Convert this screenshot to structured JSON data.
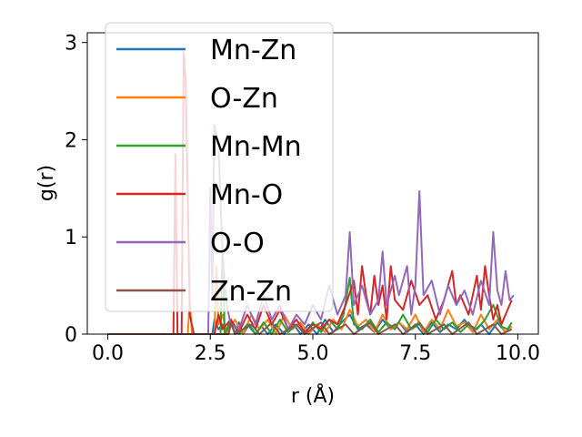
{
  "chart_data": {
    "type": "line",
    "title": "",
    "xlabel": "r (Å)",
    "ylabel": "g(r)",
    "xlim": [
      -0.5,
      10.5
    ],
    "ylim": [
      0,
      3.1
    ],
    "xticks": [
      0.0,
      2.5,
      5.0,
      7.5,
      10.0
    ],
    "xtick_labels": [
      "0.0",
      "2.5",
      "5.0",
      "7.5",
      "10.0"
    ],
    "yticks": [
      0,
      1,
      2,
      3
    ],
    "ytick_labels": [
      "0",
      "1",
      "2",
      "3"
    ],
    "grid": false,
    "legend_position": "top-left",
    "series": [
      {
        "name": "Mn-Zn",
        "color": "#1f77b4",
        "points": [
          [
            0,
            0
          ],
          [
            2.55,
            0
          ],
          [
            2.6,
            0.15
          ],
          [
            2.7,
            0.05
          ],
          [
            2.8,
            0.1
          ],
          [
            2.9,
            0
          ],
          [
            3.0,
            0.15
          ],
          [
            3.1,
            0
          ],
          [
            3.2,
            0.12
          ],
          [
            3.3,
            0
          ],
          [
            3.45,
            0.1
          ],
          [
            3.6,
            0
          ],
          [
            3.75,
            0.08
          ],
          [
            3.9,
            0
          ],
          [
            4.1,
            0.1
          ],
          [
            4.3,
            0
          ],
          [
            4.5,
            0.12
          ],
          [
            4.7,
            0
          ],
          [
            4.9,
            0.1
          ],
          [
            5.1,
            0
          ],
          [
            5.3,
            0.15
          ],
          [
            5.5,
            0.02
          ],
          [
            5.7,
            0.12
          ],
          [
            5.9,
            0.2
          ],
          [
            6.1,
            0.05
          ],
          [
            6.3,
            0.1
          ],
          [
            6.5,
            0.02
          ],
          [
            6.7,
            0.15
          ],
          [
            6.9,
            0.05
          ],
          [
            7.1,
            0.12
          ],
          [
            7.3,
            0.02
          ],
          [
            7.5,
            0.1
          ],
          [
            7.7,
            0
          ],
          [
            7.9,
            0.12
          ],
          [
            8.1,
            0.02
          ],
          [
            8.3,
            0.1
          ],
          [
            8.5,
            0.05
          ],
          [
            8.7,
            0.15
          ],
          [
            8.9,
            0.02
          ],
          [
            9.1,
            0.1
          ],
          [
            9.3,
            0
          ],
          [
            9.5,
            0.12
          ],
          [
            9.7,
            0.02
          ],
          [
            9.85,
            0.05
          ]
        ]
      },
      {
        "name": "O-Zn",
        "color": "#ff7f0e",
        "points": [
          [
            0,
            0
          ],
          [
            1.95,
            0
          ],
          [
            2.0,
            0.35
          ],
          [
            2.05,
            0
          ],
          [
            2.6,
            0
          ],
          [
            2.65,
            0.7
          ],
          [
            2.7,
            0.1
          ],
          [
            2.8,
            0.2
          ],
          [
            2.9,
            0
          ],
          [
            3.1,
            0.15
          ],
          [
            3.3,
            0
          ],
          [
            3.5,
            0.2
          ],
          [
            3.7,
            0.05
          ],
          [
            3.9,
            0.15
          ],
          [
            4.1,
            0
          ],
          [
            4.3,
            0.2
          ],
          [
            4.5,
            0.05
          ],
          [
            4.7,
            0.12
          ],
          [
            4.9,
            0
          ],
          [
            5.1,
            0.1
          ],
          [
            5.3,
            0.02
          ],
          [
            5.5,
            0.15
          ],
          [
            5.7,
            0.05
          ],
          [
            5.9,
            0.25
          ],
          [
            6.1,
            0.08
          ],
          [
            6.3,
            0.15
          ],
          [
            6.5,
            0.02
          ],
          [
            6.7,
            0.2
          ],
          [
            6.9,
            0.05
          ],
          [
            7.1,
            0.12
          ],
          [
            7.3,
            0.05
          ],
          [
            7.5,
            0.2
          ],
          [
            7.7,
            0.02
          ],
          [
            7.9,
            0.15
          ],
          [
            8.1,
            0.05
          ],
          [
            8.3,
            0.25
          ],
          [
            8.5,
            0.08
          ],
          [
            8.7,
            0.12
          ],
          [
            8.9,
            0.02
          ],
          [
            9.1,
            0.2
          ],
          [
            9.3,
            0.05
          ],
          [
            9.5,
            0.15
          ],
          [
            9.7,
            0.02
          ],
          [
            9.85,
            0.08
          ]
        ]
      },
      {
        "name": "Mn-Mn",
        "color": "#2ca02c",
        "points": [
          [
            0,
            0
          ],
          [
            2.75,
            0
          ],
          [
            2.8,
            0.9
          ],
          [
            2.85,
            0
          ],
          [
            3.0,
            0.15
          ],
          [
            3.2,
            0
          ],
          [
            3.4,
            0.1
          ],
          [
            3.6,
            0
          ],
          [
            3.8,
            0.12
          ],
          [
            4.0,
            0
          ],
          [
            4.2,
            0.15
          ],
          [
            4.4,
            0.02
          ],
          [
            4.6,
            0.1
          ],
          [
            4.8,
            0
          ],
          [
            5.0,
            0.12
          ],
          [
            5.2,
            0.02
          ],
          [
            5.4,
            0.15
          ],
          [
            5.6,
            0.05
          ],
          [
            5.75,
            0.2
          ],
          [
            5.9,
            0.58
          ],
          [
            6.0,
            0.1
          ],
          [
            6.2,
            0.05
          ],
          [
            6.4,
            0.15
          ],
          [
            6.6,
            0.02
          ],
          [
            6.8,
            0.12
          ],
          [
            7.0,
            0.05
          ],
          [
            7.2,
            0.2
          ],
          [
            7.4,
            0.05
          ],
          [
            7.6,
            0.1
          ],
          [
            7.8,
            0.02
          ],
          [
            8.0,
            0.15
          ],
          [
            8.2,
            0.05
          ],
          [
            8.4,
            0.12
          ],
          [
            8.6,
            0.02
          ],
          [
            8.8,
            0.1
          ],
          [
            9.0,
            0.05
          ],
          [
            9.2,
            0.15
          ],
          [
            9.4,
            0.3
          ],
          [
            9.6,
            0.08
          ],
          [
            9.75,
            0.05
          ],
          [
            9.85,
            0.12
          ]
        ]
      },
      {
        "name": "Mn-O",
        "color": "#d62728",
        "points": [
          [
            0,
            0
          ],
          [
            1.6,
            0
          ],
          [
            1.65,
            1.85
          ],
          [
            1.7,
            0
          ],
          [
            1.8,
            0
          ],
          [
            1.85,
            2.9
          ],
          [
            1.9,
            2.6
          ],
          [
            1.95,
            1.4
          ],
          [
            2.0,
            0.2
          ],
          [
            2.1,
            0
          ],
          [
            2.6,
            0
          ],
          [
            2.7,
            0.2
          ],
          [
            2.8,
            0.05
          ],
          [
            3.0,
            0.15
          ],
          [
            3.2,
            0.02
          ],
          [
            3.4,
            0.2
          ],
          [
            3.6,
            0.05
          ],
          [
            3.8,
            0.3
          ],
          [
            4.0,
            0.1
          ],
          [
            4.2,
            0.25
          ],
          [
            4.4,
            0.05
          ],
          [
            4.6,
            0.15
          ],
          [
            4.8,
            0.02
          ],
          [
            5.0,
            0.1
          ],
          [
            5.2,
            0.05
          ],
          [
            5.4,
            0.15
          ],
          [
            5.6,
            0.1
          ],
          [
            5.8,
            0.3
          ],
          [
            6.0,
            0.55
          ],
          [
            6.1,
            0.2
          ],
          [
            6.2,
            0.7
          ],
          [
            6.3,
            0.4
          ],
          [
            6.4,
            0.2
          ],
          [
            6.5,
            0.6
          ],
          [
            6.6,
            0.3
          ],
          [
            6.7,
            0.5
          ],
          [
            6.8,
            0.15
          ],
          [
            6.9,
            0.7
          ],
          [
            7.0,
            0.35
          ],
          [
            7.2,
            0.25
          ],
          [
            7.4,
            0.55
          ],
          [
            7.6,
            0.3
          ],
          [
            7.8,
            0.4
          ],
          [
            8.0,
            0.15
          ],
          [
            8.2,
            0.35
          ],
          [
            8.4,
            0.65
          ],
          [
            8.5,
            0.3
          ],
          [
            8.6,
            0.4
          ],
          [
            8.8,
            0.2
          ],
          [
            9.0,
            0.6
          ],
          [
            9.1,
            0.25
          ],
          [
            9.2,
            0.7
          ],
          [
            9.3,
            0.4
          ],
          [
            9.4,
            0.15
          ],
          [
            9.5,
            0.3
          ],
          [
            9.6,
            0.1
          ],
          [
            9.7,
            0.2
          ],
          [
            9.85,
            0.35
          ]
        ]
      },
      {
        "name": "O-O",
        "color": "#9467bd",
        "points": [
          [
            0,
            0
          ],
          [
            2.45,
            0
          ],
          [
            2.5,
            1.5
          ],
          [
            2.55,
            0.4
          ],
          [
            2.6,
            2.15
          ],
          [
            2.7,
            1.95
          ],
          [
            2.8,
            0.8
          ],
          [
            2.9,
            0.3
          ],
          [
            3.0,
            0.1
          ],
          [
            3.2,
            0.05
          ],
          [
            3.4,
            0.3
          ],
          [
            3.6,
            0.1
          ],
          [
            3.8,
            0.4
          ],
          [
            4.0,
            0.15
          ],
          [
            4.2,
            0.3
          ],
          [
            4.4,
            0.05
          ],
          [
            4.6,
            0.2
          ],
          [
            4.8,
            0.1
          ],
          [
            5.0,
            0.3
          ],
          [
            5.2,
            0.15
          ],
          [
            5.4,
            0.5
          ],
          [
            5.6,
            0.2
          ],
          [
            5.8,
            0.4
          ],
          [
            5.9,
            1.05
          ],
          [
            6.0,
            0.3
          ],
          [
            6.2,
            0.5
          ],
          [
            6.4,
            0.2
          ],
          [
            6.6,
            0.35
          ],
          [
            6.7,
            0.85
          ],
          [
            6.8,
            0.3
          ],
          [
            7.0,
            0.6
          ],
          [
            7.1,
            0.4
          ],
          [
            7.3,
            0.7
          ],
          [
            7.4,
            0.2
          ],
          [
            7.5,
            0.5
          ],
          [
            7.6,
            1.47
          ],
          [
            7.7,
            0.4
          ],
          [
            7.9,
            0.55
          ],
          [
            8.1,
            0.2
          ],
          [
            8.3,
            0.5
          ],
          [
            8.5,
            0.3
          ],
          [
            8.7,
            0.45
          ],
          [
            8.9,
            0.2
          ],
          [
            9.1,
            0.55
          ],
          [
            9.3,
            0.3
          ],
          [
            9.4,
            1.05
          ],
          [
            9.5,
            0.45
          ],
          [
            9.6,
            0.3
          ],
          [
            9.7,
            0.65
          ],
          [
            9.8,
            0.35
          ],
          [
            9.9,
            0.4
          ]
        ]
      },
      {
        "name": "Zn-Zn",
        "color": "#8c564b",
        "points": [
          [
            0,
            0
          ],
          [
            2.95,
            0
          ],
          [
            3.0,
            0.12
          ],
          [
            3.1,
            0
          ],
          [
            3.5,
            0.1
          ],
          [
            3.7,
            0
          ],
          [
            4.0,
            0.12
          ],
          [
            4.2,
            0
          ],
          [
            4.6,
            0.1
          ],
          [
            4.8,
            0
          ],
          [
            5.2,
            0.12
          ],
          [
            5.4,
            0
          ],
          [
            5.8,
            0.1
          ],
          [
            6.0,
            0
          ],
          [
            6.4,
            0.12
          ],
          [
            6.6,
            0
          ],
          [
            7.0,
            0.1
          ],
          [
            7.2,
            0
          ],
          [
            7.6,
            0.12
          ],
          [
            7.8,
            0
          ],
          [
            8.2,
            0.1
          ],
          [
            8.4,
            0
          ],
          [
            8.8,
            0.12
          ],
          [
            9.0,
            0
          ],
          [
            9.4,
            0.1
          ],
          [
            9.6,
            0
          ],
          [
            9.85,
            0.05
          ]
        ]
      }
    ]
  }
}
